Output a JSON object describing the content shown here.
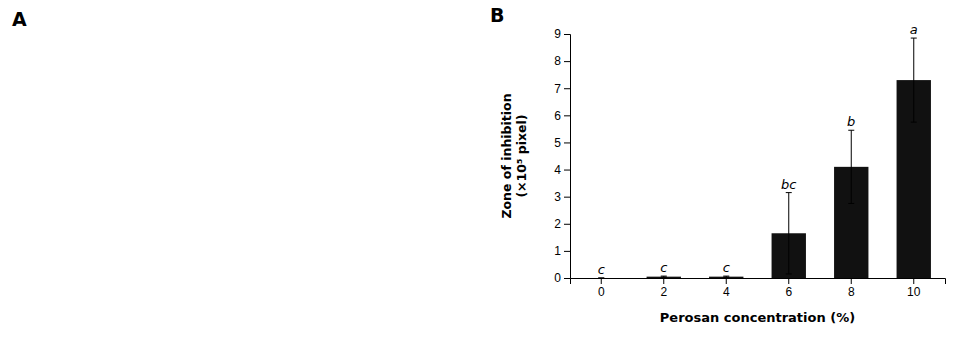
{
  "chart_data": {
    "type": "bar",
    "x_label": "Perosan concentration (%)",
    "y_label": "Zone of inhibition\n(×10⁵ pixel)",
    "categories": [
      0,
      2,
      4,
      6,
      8,
      10
    ],
    "values": [
      0.0,
      0.05,
      0.05,
      1.65,
      4.1,
      7.3
    ],
    "errors": [
      0.0,
      0.02,
      0.02,
      1.5,
      1.35,
      1.55
    ],
    "bar_labels": [
      "c",
      "c",
      "c",
      "bc",
      "b",
      "a"
    ],
    "annotations": [
      "A",
      "B"
    ],
    "color": "#111111",
    "ylim": [
      0,
      9
    ],
    "yticks": [
      0,
      1,
      2,
      3,
      4,
      5,
      6,
      7,
      8,
      9
    ],
    "grid": false
  }
}
